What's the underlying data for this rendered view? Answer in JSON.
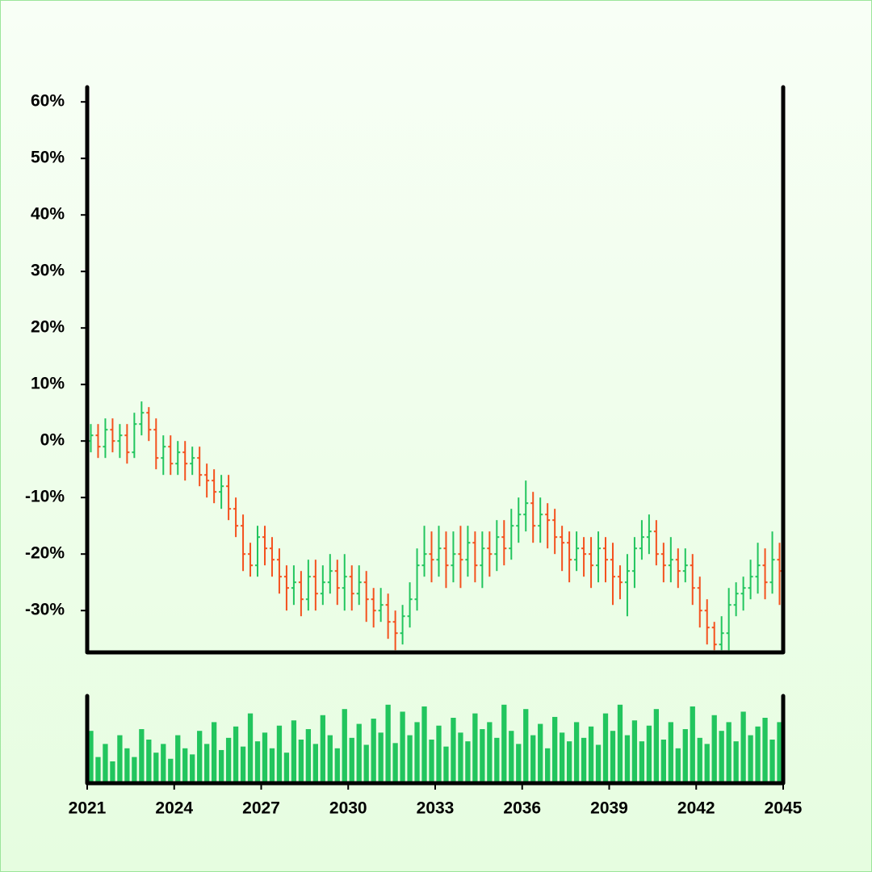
{
  "chart_data": {
    "type": "ohlc",
    "x": [
      2021,
      2021.25,
      2021.5,
      2021.75,
      2022,
      2022.25,
      2022.5,
      2022.75,
      2023,
      2023.25,
      2023.5,
      2023.75,
      2024,
      2024.25,
      2024.5,
      2024.75,
      2025,
      2025.25,
      2025.5,
      2025.75,
      2026,
      2026.25,
      2026.5,
      2026.75,
      2027,
      2027.25,
      2027.5,
      2027.75,
      2028,
      2028.25,
      2028.5,
      2028.75,
      2029,
      2029.25,
      2029.5,
      2029.75,
      2030,
      2030.25,
      2030.5,
      2030.75,
      2031,
      2031.25,
      2031.5,
      2031.75,
      2032,
      2032.25,
      2032.5,
      2032.75,
      2033,
      2033.25,
      2033.5,
      2033.75,
      2034,
      2034.25,
      2034.5,
      2034.75,
      2035,
      2035.25,
      2035.5,
      2035.75,
      2036,
      2036.25,
      2036.5,
      2036.75,
      2037,
      2037.25,
      2037.5,
      2037.75,
      2038,
      2038.25,
      2038.5,
      2038.75,
      2039,
      2039.25,
      2039.5,
      2039.75,
      2040,
      2040.25,
      2040.5,
      2040.75,
      2041,
      2041.25,
      2041.5,
      2041.75,
      2042,
      2042.25,
      2042.5,
      2042.75,
      2043,
      2043.25,
      2043.5,
      2043.75,
      2044,
      2044.25,
      2044.5,
      2044.75
    ],
    "open": [
      0,
      1,
      -1,
      2,
      0,
      1,
      -2,
      3,
      5,
      2,
      -3,
      -1,
      -4,
      -2,
      -4,
      -3,
      -6,
      -7,
      -9,
      -8,
      -12,
      -15,
      -20,
      -22,
      -17,
      -19,
      -21,
      -24,
      -26,
      -25,
      -28,
      -24,
      -27,
      -25,
      -23,
      -26,
      -24,
      -27,
      -25,
      -28,
      -30,
      -29,
      -32,
      -34,
      -31,
      -28,
      -22,
      -20,
      -21,
      -19,
      -22,
      -20,
      -21,
      -18,
      -22,
      -19,
      -20,
      -17,
      -19,
      -15,
      -13,
      -11,
      -15,
      -13,
      -14,
      -17,
      -18,
      -21,
      -19,
      -20,
      -22,
      -19,
      -21,
      -24,
      -25,
      -23,
      -19,
      -17,
      -16,
      -20,
      -22,
      -21,
      -23,
      -22,
      -26,
      -30,
      -33,
      -36,
      -34,
      -29,
      -27,
      -26,
      -24,
      -22,
      -25,
      -21
    ],
    "high": [
      3,
      3,
      4,
      4,
      3,
      3,
      5,
      7,
      6,
      4,
      1,
      1,
      0,
      0,
      -1,
      -1,
      -4,
      -5,
      -6,
      -6,
      -10,
      -13,
      -18,
      -15,
      -15,
      -17,
      -19,
      -22,
      -22,
      -23,
      -21,
      -21,
      -22,
      -20,
      -21,
      -20,
      -22,
      -22,
      -23,
      -26,
      -26,
      -27,
      -30,
      -29,
      -25,
      -19,
      -15,
      -16,
      -15,
      -16,
      -16,
      -15,
      -15,
      -16,
      -16,
      -16,
      -14,
      -14,
      -12,
      -10,
      -7,
      -9,
      -10,
      -11,
      -12,
      -15,
      -16,
      -16,
      -17,
      -17,
      -16,
      -17,
      -18,
      -22,
      -20,
      -17,
      -14,
      -13,
      -14,
      -18,
      -17,
      -19,
      -19,
      -20,
      -24,
      -28,
      -32,
      -31,
      -26,
      -25,
      -24,
      -21,
      -18,
      -19,
      -16,
      -18
    ],
    "low": [
      -2,
      -3,
      -3,
      -2,
      -3,
      -4,
      -3,
      1,
      0,
      -5,
      -6,
      -6,
      -6,
      -7,
      -6,
      -8,
      -10,
      -11,
      -12,
      -14,
      -17,
      -23,
      -24,
      -24,
      -22,
      -24,
      -27,
      -30,
      -29,
      -31,
      -30,
      -30,
      -29,
      -27,
      -29,
      -30,
      -30,
      -29,
      -32,
      -33,
      -32,
      -35,
      -37,
      -36,
      -33,
      -30,
      -24,
      -25,
      -24,
      -26,
      -25,
      -26,
      -24,
      -25,
      -26,
      -24,
      -23,
      -22,
      -21,
      -18,
      -16,
      -18,
      -18,
      -19,
      -20,
      -23,
      -25,
      -23,
      -24,
      -26,
      -25,
      -25,
      -29,
      -28,
      -31,
      -26,
      -21,
      -20,
      -22,
      -25,
      -25,
      -26,
      -25,
      -29,
      -33,
      -36,
      -37,
      -37,
      -37,
      -31,
      -30,
      -28,
      -27,
      -28,
      -27,
      -29
    ],
    "close": [
      1,
      -1,
      2,
      0,
      1,
      -2,
      3,
      5,
      2,
      -3,
      -1,
      -4,
      -2,
      -4,
      -3,
      -6,
      -7,
      -9,
      -8,
      -12,
      -15,
      -20,
      -22,
      -17,
      -19,
      -21,
      -24,
      -26,
      -25,
      -28,
      -24,
      -27,
      -25,
      -23,
      -26,
      -24,
      -27,
      -25,
      -28,
      -30,
      -29,
      -32,
      -34,
      -31,
      -28,
      -22,
      -20,
      -21,
      -19,
      -22,
      -20,
      -21,
      -18,
      -22,
      -19,
      -20,
      -17,
      -19,
      -15,
      -13,
      -11,
      -15,
      -13,
      -14,
      -17,
      -18,
      -21,
      -19,
      -20,
      -22,
      -19,
      -21,
      -24,
      -25,
      -23,
      -19,
      -17,
      -16,
      -20,
      -22,
      -21,
      -23,
      -22,
      -26,
      -30,
      -33,
      -36,
      -34,
      -29,
      -27,
      -26,
      -24,
      -22,
      -25,
      -21,
      -23
    ],
    "volume": [
      60,
      30,
      45,
      25,
      55,
      40,
      30,
      62,
      50,
      35,
      45,
      28,
      55,
      40,
      33,
      60,
      45,
      70,
      38,
      52,
      65,
      42,
      80,
      48,
      58,
      40,
      66,
      35,
      72,
      50,
      62,
      45,
      78,
      55,
      40,
      85,
      52,
      68,
      44,
      74,
      58,
      90,
      46,
      82,
      55,
      70,
      88,
      50,
      66,
      42,
      75,
      58,
      48,
      80,
      62,
      70,
      52,
      90,
      60,
      45,
      85,
      55,
      68,
      40,
      76,
      58,
      48,
      70,
      52,
      65,
      44,
      80,
      60,
      90,
      55,
      72,
      48,
      66,
      85,
      50,
      70,
      40,
      62,
      88,
      52,
      45,
      78,
      60,
      70,
      48,
      82,
      55,
      65,
      75,
      50,
      70
    ],
    "up_color": "#22c55e",
    "down_color": "#f4511e",
    "volume_color": "#22c55e",
    "xlim": [
      2021,
      2045
    ],
    "xticks": [
      2021,
      2024,
      2027,
      2030,
      2033,
      2036,
      2039,
      2042,
      2045
    ],
    "ylim": [
      -37.4,
      62.6
    ],
    "yticks": [
      {
        "value": -30,
        "label": "-30%"
      },
      {
        "value": -20,
        "label": "-20%"
      },
      {
        "value": -10,
        "label": "-10%"
      },
      {
        "value": 0,
        "label": "0%"
      },
      {
        "value": 10,
        "label": "10%"
      },
      {
        "value": 20,
        "label": "20%"
      },
      {
        "value": 30,
        "label": "30%"
      },
      {
        "value": 40,
        "label": "40%"
      },
      {
        "value": 50,
        "label": "50%"
      },
      {
        "value": 60,
        "label": "60%"
      }
    ],
    "volume_ylim": [
      0,
      100
    ]
  }
}
